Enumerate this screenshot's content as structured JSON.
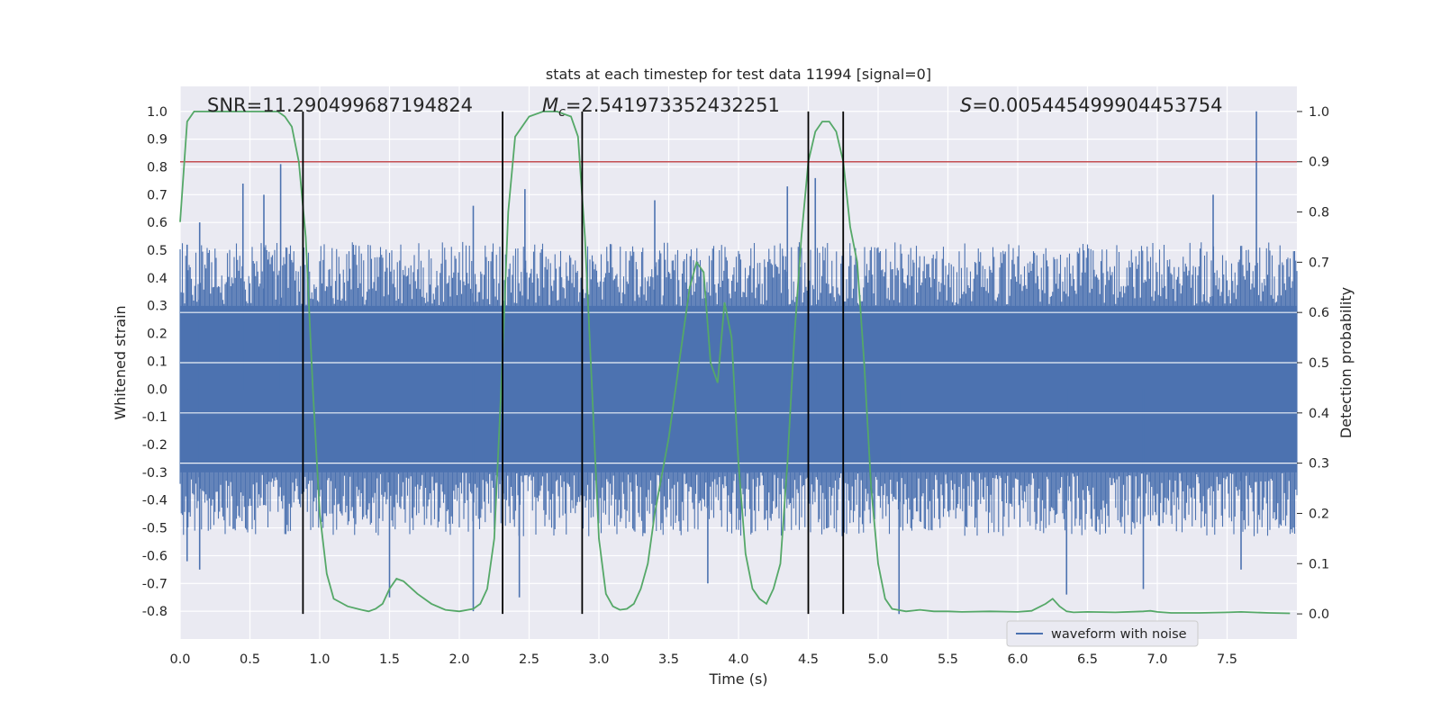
{
  "chart_data": {
    "type": "line",
    "title": "stats at each timestep for test data 11994 [signal=0]",
    "xlabel": "Time (s)",
    "ylabel_left": "Whitened strain",
    "ylabel_right": "Detection probability",
    "xlim": [
      0.0,
      8.0
    ],
    "ylim_left": [
      -0.9,
      1.09
    ],
    "ylim_right": [
      -0.05,
      1.05
    ],
    "x_ticks": [
      "0.0",
      "0.5",
      "1.0",
      "1.5",
      "2.0",
      "2.5",
      "3.0",
      "3.5",
      "4.0",
      "4.5",
      "5.0",
      "5.5",
      "6.0",
      "6.5",
      "7.0",
      "7.5"
    ],
    "y_left_ticks": [
      "1.0",
      "0.9",
      "0.8",
      "0.7",
      "0.6",
      "0.5",
      "0.4",
      "0.3",
      "0.2",
      "0.1",
      "0.0",
      "-0.1",
      "-0.2",
      "-0.3",
      "-0.4",
      "-0.5",
      "-0.6",
      "-0.7",
      "-0.8"
    ],
    "y_right_ticks": [
      "1.0",
      "0.9",
      "0.8",
      "0.7",
      "0.6",
      "0.5",
      "0.4",
      "0.3",
      "0.2",
      "0.1",
      "0.0"
    ],
    "grid": true,
    "legend_position": "lower-right",
    "annotations": {
      "snr": "SNR=11.290499687194824",
      "mc_prefix": "M",
      "mc_sub": "c",
      "mc_value": "=2.541973352432251",
      "s_prefix": "S",
      "s_value": "=0.005445499904453754"
    },
    "series": [
      {
        "name": "waveform with noise",
        "axis": "left",
        "color": "#4c72b0",
        "kind": "noise",
        "band": [
          -0.3,
          0.3
        ],
        "typical_peak": [
          -0.45,
          0.45
        ],
        "spikes": [
          {
            "x": 0.05,
            "y": 0.52
          },
          {
            "x": 0.14,
            "y": 0.6
          },
          {
            "x": 0.45,
            "y": 0.74
          },
          {
            "x": 0.72,
            "y": 0.81
          },
          {
            "x": 0.6,
            "y": 0.7
          },
          {
            "x": 2.1,
            "y": 0.66
          },
          {
            "x": 2.47,
            "y": 0.72
          },
          {
            "x": 3.4,
            "y": 0.68
          },
          {
            "x": 4.35,
            "y": 0.73
          },
          {
            "x": 4.55,
            "y": 0.76
          },
          {
            "x": 7.4,
            "y": 0.7
          },
          {
            "x": 7.71,
            "y": 1.0
          },
          {
            "x": 0.05,
            "y": -0.62
          },
          {
            "x": 0.14,
            "y": -0.65
          },
          {
            "x": 1.5,
            "y": -0.75
          },
          {
            "x": 2.1,
            "y": -0.8
          },
          {
            "x": 2.43,
            "y": -0.75
          },
          {
            "x": 3.78,
            "y": -0.7
          },
          {
            "x": 5.15,
            "y": -0.81
          },
          {
            "x": 6.35,
            "y": -0.74
          },
          {
            "x": 6.9,
            "y": -0.72
          },
          {
            "x": 7.6,
            "y": -0.65
          }
        ]
      },
      {
        "name": "",
        "axis": "right",
        "color": "#55a868",
        "x": [
          0.0,
          0.05,
          0.1,
          0.2,
          0.4,
          0.6,
          0.7,
          0.75,
          0.8,
          0.85,
          0.9,
          0.95,
          1.0,
          1.05,
          1.1,
          1.2,
          1.3,
          1.35,
          1.4,
          1.45,
          1.5,
          1.55,
          1.6,
          1.7,
          1.8,
          1.9,
          2.0,
          2.1,
          2.15,
          2.2,
          2.25,
          2.3,
          2.35,
          2.4,
          2.5,
          2.6,
          2.7,
          2.8,
          2.85,
          2.9,
          2.95,
          3.0,
          3.05,
          3.1,
          3.15,
          3.2,
          3.25,
          3.3,
          3.35,
          3.4,
          3.5,
          3.6,
          3.65,
          3.7,
          3.75,
          3.8,
          3.85,
          3.9,
          3.95,
          4.0,
          4.05,
          4.1,
          4.15,
          4.2,
          4.25,
          4.3,
          4.35,
          4.4,
          4.45,
          4.5,
          4.55,
          4.6,
          4.65,
          4.7,
          4.75,
          4.8,
          4.85,
          4.9,
          4.95,
          5.0,
          5.05,
          5.1,
          5.2,
          5.3,
          5.4,
          5.5,
          5.6,
          5.8,
          6.0,
          6.1,
          6.2,
          6.25,
          6.3,
          6.35,
          6.4,
          6.5,
          6.7,
          6.9,
          6.95,
          7.0,
          7.1,
          7.3,
          7.5,
          7.6,
          7.8,
          7.95
        ],
        "values": [
          0.78,
          0.98,
          1.0,
          1.0,
          1.0,
          1.0,
          1.0,
          0.99,
          0.97,
          0.9,
          0.75,
          0.45,
          0.2,
          0.08,
          0.03,
          0.015,
          0.008,
          0.005,
          0.01,
          0.02,
          0.05,
          0.07,
          0.065,
          0.04,
          0.02,
          0.008,
          0.005,
          0.01,
          0.02,
          0.05,
          0.15,
          0.45,
          0.8,
          0.95,
          0.99,
          1.0,
          1.0,
          0.99,
          0.95,
          0.75,
          0.45,
          0.15,
          0.04,
          0.015,
          0.008,
          0.01,
          0.02,
          0.05,
          0.1,
          0.2,
          0.35,
          0.55,
          0.65,
          0.7,
          0.68,
          0.5,
          0.46,
          0.62,
          0.55,
          0.3,
          0.12,
          0.05,
          0.03,
          0.02,
          0.05,
          0.1,
          0.3,
          0.55,
          0.75,
          0.9,
          0.96,
          0.98,
          0.98,
          0.96,
          0.9,
          0.77,
          0.7,
          0.5,
          0.25,
          0.1,
          0.03,
          0.01,
          0.005,
          0.008,
          0.005,
          0.005,
          0.004,
          0.005,
          0.004,
          0.006,
          0.02,
          0.03,
          0.015,
          0.005,
          0.003,
          0.004,
          0.003,
          0.005,
          0.006,
          0.004,
          0.002,
          0.002,
          0.003,
          0.004,
          0.002,
          0.001
        ]
      },
      {
        "name": "",
        "axis": "right",
        "color": "#c44e52",
        "kind": "hline",
        "y": 0.9
      }
    ],
    "vlines_x": [
      0.88,
      2.31,
      2.88,
      4.5,
      4.75
    ]
  }
}
